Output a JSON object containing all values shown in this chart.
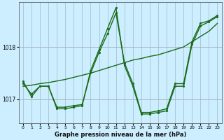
{
  "title": "Graphe pression niveau de la mer (hPa)",
  "background_color": "#cceeff",
  "grid_color": "#99bbcc",
  "line_color": "#1a6b1a",
  "xlim": [
    -0.5,
    23.5
  ],
  "ylim": [
    1016.55,
    1018.85
  ],
  "yticks": [
    1017,
    1018
  ],
  "xticks": [
    0,
    1,
    2,
    3,
    4,
    5,
    6,
    7,
    8,
    9,
    10,
    11,
    12,
    13,
    14,
    15,
    16,
    17,
    18,
    19,
    20,
    21,
    22,
    23
  ],
  "series": [
    {
      "x": [
        0,
        1,
        2,
        3,
        4,
        5,
        6,
        7,
        8,
        9,
        10,
        11,
        12,
        13,
        14,
        15,
        16,
        17,
        18,
        19,
        20,
        21,
        22,
        23
      ],
      "y": [
        1017.25,
        1017.27,
        1017.3,
        1017.32,
        1017.35,
        1017.38,
        1017.42,
        1017.46,
        1017.5,
        1017.55,
        1017.6,
        1017.65,
        1017.7,
        1017.75,
        1017.78,
        1017.82,
        1017.85,
        1017.9,
        1017.95,
        1018.0,
        1018.1,
        1018.2,
        1018.3,
        1018.45
      ],
      "style": "-",
      "linewidth": 1.0,
      "markersize": 0
    },
    {
      "x": [
        0,
        1,
        2,
        3,
        4,
        5,
        6,
        7,
        8,
        9,
        10,
        11,
        12,
        13,
        14,
        15,
        16,
        17,
        18,
        19,
        20,
        21,
        22,
        23
      ],
      "y": [
        1017.3,
        1017.1,
        1017.25,
        1017.25,
        1016.85,
        1016.85,
        1016.88,
        1016.9,
        1017.5,
        1017.9,
        1018.25,
        1018.65,
        1017.7,
        1017.3,
        1016.75,
        1016.75,
        1016.78,
        1016.82,
        1017.3,
        1017.3,
        1018.1,
        1018.45,
        1018.5,
        1018.6
      ],
      "style": ".-",
      "linewidth": 1.0,
      "markersize": 2.5
    },
    {
      "x": [
        0,
        1,
        2,
        3,
        4,
        5,
        6,
        7,
        8,
        9,
        10,
        11,
        12,
        13,
        14,
        15,
        16,
        17,
        18,
        19,
        20,
        21,
        22,
        23
      ],
      "y": [
        1017.35,
        1017.05,
        1017.25,
        1017.25,
        1016.82,
        1016.82,
        1016.85,
        1016.88,
        1017.55,
        1017.95,
        1018.35,
        1018.75,
        1017.65,
        1017.25,
        1016.72,
        1016.72,
        1016.75,
        1016.78,
        1017.25,
        1017.25,
        1018.05,
        1018.4,
        1018.48,
        1018.58
      ],
      "style": ".-",
      "linewidth": 1.0,
      "markersize": 2.5
    }
  ]
}
